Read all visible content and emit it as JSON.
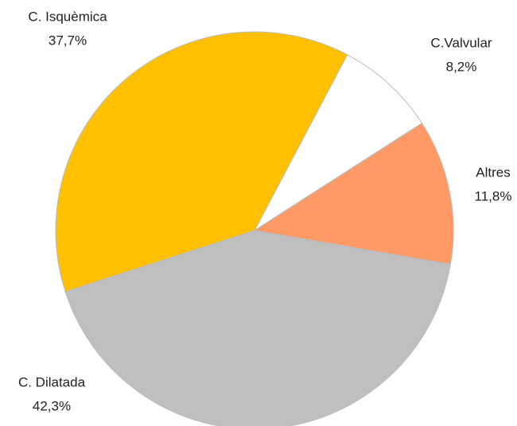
{
  "chart_data": {
    "type": "pie",
    "categories": [
      "C.Valvular",
      "Altres",
      "C. Dilatada",
      "C. Isquèmica"
    ],
    "values": [
      8.2,
      11.8,
      42.3,
      37.7
    ],
    "value_labels": [
      "8,2%",
      "11,8%",
      "42,3%",
      "37,7%"
    ],
    "colors": [
      "#ffffff",
      "#ff9966",
      "#bfbfbf",
      "#ffc000"
    ]
  }
}
